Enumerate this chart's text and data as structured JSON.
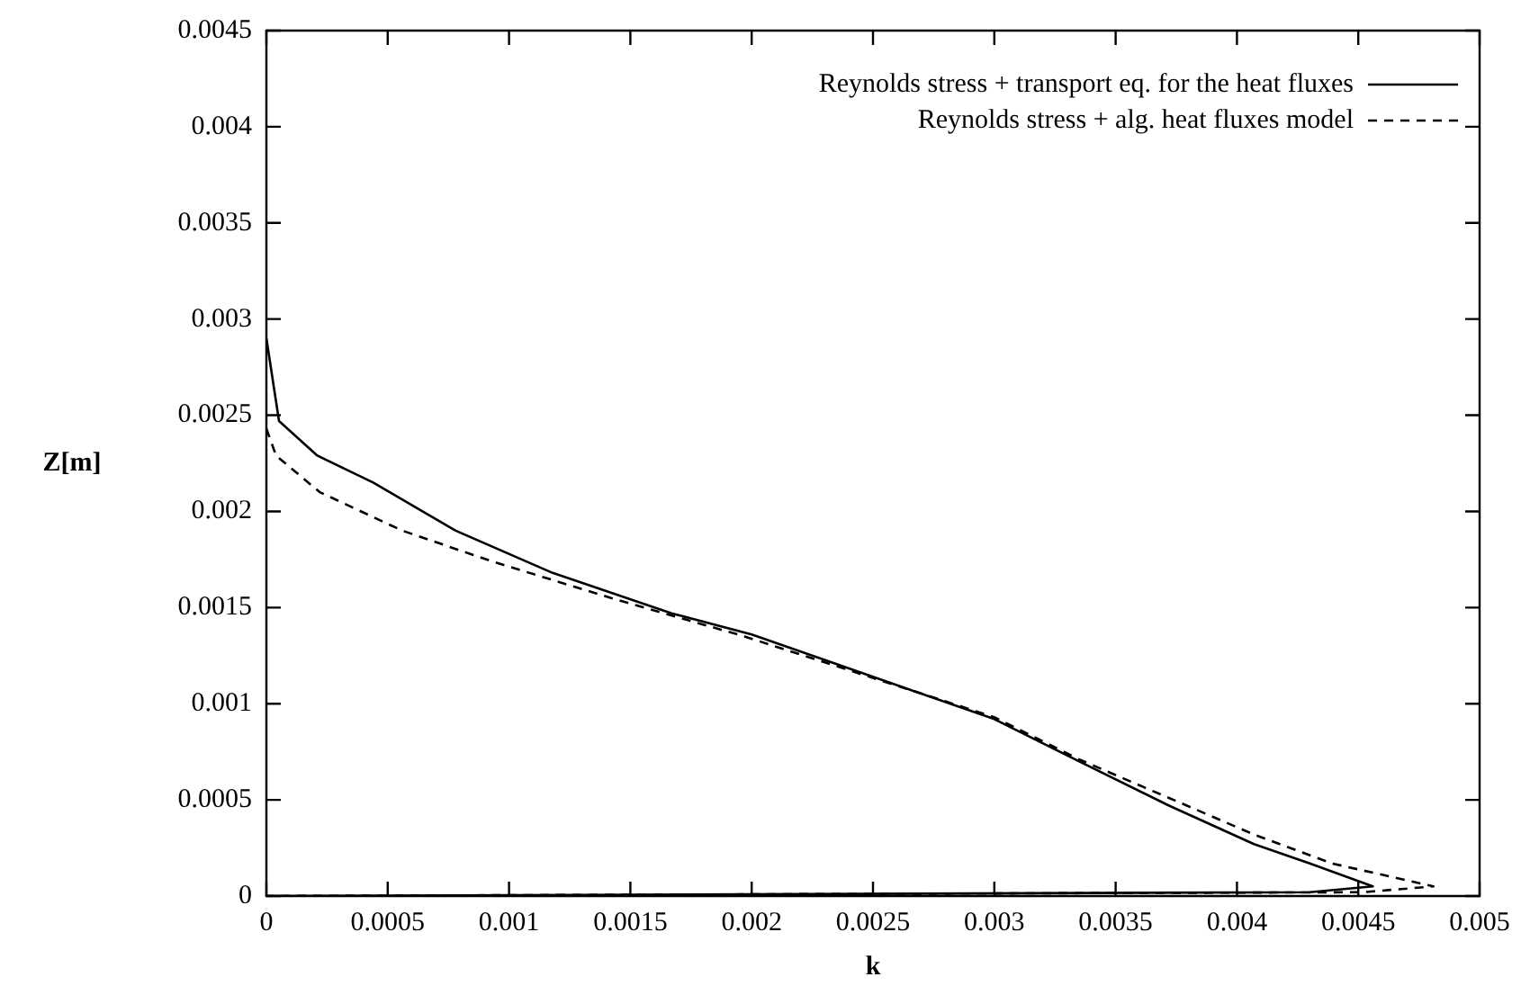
{
  "chart_data": {
    "type": "line",
    "xlabel": "k",
    "ylabel": "Z[m]",
    "xlim": [
      0,
      0.005
    ],
    "xticks": [
      0,
      0.0005,
      0.001,
      0.0015,
      0.002,
      0.0025,
      0.003,
      0.0035,
      0.004,
      0.0045,
      0.005
    ],
    "ylim": [
      0,
      0.0045
    ],
    "yticks": [
      0,
      0.0005,
      0.001,
      0.0015,
      0.002,
      0.0025,
      0.003,
      0.0035,
      0.004,
      0.0045
    ],
    "grid": false,
    "legend": "top right",
    "marker": "none",
    "series": [
      {
        "name": "Reynolds stress + transport eq. for the heat fluxes",
        "color": "#000000",
        "line_style": "solid",
        "x": [
          0,
          5.2e-05,
          0.00021,
          0.00044,
          0.00078,
          0.00118,
          0.00167,
          0.002,
          0.003,
          0.00335,
          0.00372,
          0.00407,
          0.0043,
          0.00456,
          0.0043,
          0
        ],
        "values": [
          0.0029,
          0.00247,
          0.00229,
          0.00215,
          0.0019,
          0.00168,
          0.00147,
          0.00136,
          0.00092,
          0.0007,
          0.00047,
          0.00027,
          0.00017,
          5e-05,
          2e-05,
          0
        ]
      },
      {
        "name": "Reynolds stress + alg. heat fluxes model",
        "color": "#000000",
        "line_style": "dashed",
        "x": [
          0,
          4e-05,
          0.00022,
          0.00056,
          0.00093,
          0.00142,
          0.00197,
          0.003,
          0.00335,
          0.00372,
          0.00407,
          0.00439,
          0.00481,
          0.00452,
          0
        ],
        "values": [
          0.00243,
          0.00229,
          0.0021,
          0.0019,
          0.00174,
          0.00155,
          0.00135,
          0.00093,
          0.00071,
          0.00051,
          0.00032,
          0.00017,
          5e-05,
          2e-05,
          0
        ]
      }
    ]
  }
}
